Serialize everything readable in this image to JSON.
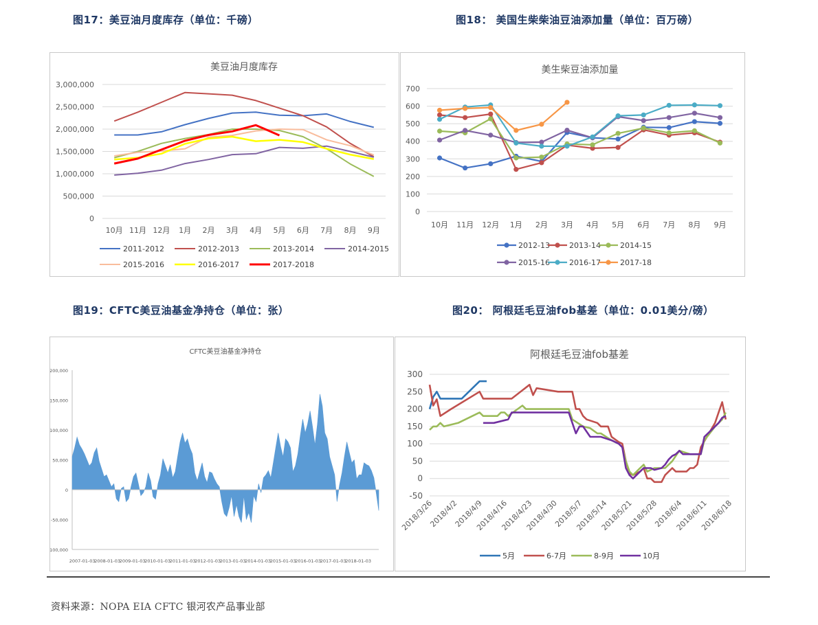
{
  "headings": {
    "fig17": "图17：美豆油月度库存（单位：千磅）",
    "fig18": "图18：  美国生柴柴油豆油添加量（单位：百万磅）",
    "fig19": "图19：CFTC美豆油基金净持仓（单位：张）",
    "fig20": "图20：  阿根廷毛豆油fob基差（单位：0.01美分/磅）"
  },
  "source": "资料来源：NOPA EIA CFTC  银河农产品事业部",
  "chart_data": [
    {
      "type": "line",
      "title": "美豆油月度库存",
      "categories": [
        "10月",
        "11月",
        "12月",
        "1月",
        "2月",
        "3月",
        "4月",
        "5月",
        "6月",
        "7月",
        "8月",
        "9月"
      ],
      "ylim": [
        0,
        3000000
      ],
      "yticks": [
        0,
        500000,
        1000000,
        1500000,
        2000000,
        2500000,
        3000000
      ],
      "ytick_labels": [
        "0",
        "500,000",
        "1,000,000",
        "1,500,000",
        "2,000,000",
        "2,500,000",
        "3,000,000"
      ],
      "grid": true,
      "legend_position": "bottom",
      "series": [
        {
          "name": "2011-2012",
          "color": "#4472c4",
          "width": 2,
          "values": [
            1870000,
            1870000,
            1940000,
            2100000,
            2240000,
            2360000,
            2380000,
            2310000,
            2300000,
            2340000,
            2170000,
            2040000
          ]
        },
        {
          "name": "2012-2013",
          "color": "#c0504d",
          "width": 2,
          "values": [
            2180000,
            2380000,
            2600000,
            2820000,
            2790000,
            2760000,
            2640000,
            2470000,
            2300000,
            2050000,
            1680000,
            1380000
          ]
        },
        {
          "name": "2013-2014",
          "color": "#9bbb59",
          "width": 2,
          "values": [
            1360000,
            1500000,
            1680000,
            1790000,
            1880000,
            2000000,
            2000000,
            1970000,
            1830000,
            1560000,
            1220000,
            940000
          ]
        },
        {
          "name": "2014-2015",
          "color": "#8064a2",
          "width": 2,
          "values": [
            970000,
            1010000,
            1080000,
            1230000,
            1320000,
            1430000,
            1450000,
            1590000,
            1570000,
            1620000,
            1500000,
            1370000
          ]
        },
        {
          "name": "2015-2016",
          "color": "#f9bc9c",
          "width": 2,
          "values": [
            1400000,
            1480000,
            1510000,
            1560000,
            1820000,
            1860000,
            1960000,
            2000000,
            1990000,
            1760000,
            1630000,
            1420000
          ]
        },
        {
          "name": "2016-2017",
          "color": "#ffff00",
          "width": 2.5,
          "values": [
            1320000,
            1360000,
            1450000,
            1670000,
            1790000,
            1830000,
            1730000,
            1760000,
            1710000,
            1560000,
            1430000,
            1330000
          ]
        },
        {
          "name": "2017-2018",
          "color": "#ff0000",
          "width": 3,
          "values": [
            1230000,
            1340000,
            1540000,
            1740000,
            1870000,
            1950000,
            2090000,
            1860000,
            null,
            null,
            null,
            null
          ]
        }
      ]
    },
    {
      "type": "line",
      "title": "美生柴豆油添加量",
      "categories": [
        "10月",
        "11月",
        "12月",
        "1月",
        "2月",
        "3月",
        "4月",
        "5月",
        "6月",
        "7月",
        "8月",
        "9月"
      ],
      "ylim": [
        0,
        700
      ],
      "yticks": [
        0,
        100,
        200,
        300,
        400,
        500,
        600,
        700
      ],
      "grid": true,
      "legend_position": "bottom",
      "series": [
        {
          "name": "2012-13",
          "color": "#4472c4",
          "values": [
            305,
            248,
            272,
            315,
            285,
            450,
            420,
            413,
            480,
            478,
            512,
            502
          ]
        },
        {
          "name": "2013-14",
          "color": "#c0504d",
          "values": [
            550,
            535,
            555,
            240,
            278,
            378,
            360,
            365,
            465,
            435,
            448,
            395
          ]
        },
        {
          "name": "2014-15",
          "color": "#9bbb59",
          "values": [
            458,
            448,
            528,
            305,
            310,
            385,
            380,
            445,
            475,
            448,
            460,
            390
          ]
        },
        {
          "name": "2015-16",
          "color": "#8064a2",
          "values": [
            407,
            462,
            435,
            393,
            395,
            463,
            420,
            540,
            518,
            535,
            560,
            535
          ]
        },
        {
          "name": "2016-17",
          "color": "#4bacc6",
          "values": [
            525,
            595,
            607,
            390,
            372,
            372,
            425,
            545,
            550,
            605,
            607,
            603
          ]
        },
        {
          "name": "2017-18",
          "color": "#f79646",
          "values": [
            577,
            587,
            592,
            462,
            497,
            622,
            null,
            null,
            null,
            null,
            null,
            null
          ]
        }
      ]
    },
    {
      "type": "area",
      "title": "CFTC美豆油基金净持仓",
      "x_tick_labels": [
        "2007-01-03",
        "2008-01-03",
        "2009-01-03",
        "2010-01-03",
        "2011-01-03",
        "2012-01-03",
        "2013-01-03",
        "2014-01-03",
        "2015-01-03",
        "2016-01-03",
        "2017-01-03",
        "2018-01-03"
      ],
      "ylim": [
        -100000,
        200000
      ],
      "yticks": [
        -100000,
        -50000,
        0,
        50000,
        100000,
        150000,
        200000
      ],
      "ytick_labels": [
        "-100,000",
        "-50,000",
        "0",
        "50,000",
        "100,000",
        "150,000",
        "200,000"
      ],
      "color": "#5b9bd5",
      "series": [
        {
          "name": "",
          "values": [
            55000,
            70000,
            88000,
            75000,
            68000,
            60000,
            50000,
            40000,
            45000,
            62000,
            70000,
            48000,
            35000,
            22000,
            25000,
            15000,
            5000,
            10000,
            -15000,
            -20000,
            2000,
            5000,
            -20000,
            -15000,
            5000,
            22000,
            28000,
            10000,
            -10000,
            -5000,
            5000,
            28000,
            15000,
            -12000,
            -16000,
            10000,
            25000,
            52000,
            40000,
            28000,
            42000,
            20000,
            30000,
            55000,
            80000,
            95000,
            78000,
            85000,
            70000,
            60000,
            28000,
            15000,
            30000,
            45000,
            22000,
            12000,
            30000,
            28000,
            18000,
            10000,
            5000,
            -20000,
            -40000,
            -45000,
            -30000,
            -10000,
            -45000,
            -25000,
            -45000,
            -55000,
            -10000,
            -50000,
            -38000,
            -55000,
            -10000,
            -20000,
            10000,
            -5000,
            20000,
            25000,
            32000,
            20000,
            45000,
            70000,
            95000,
            72000,
            55000,
            85000,
            80000,
            70000,
            30000,
            40000,
            60000,
            90000,
            118000,
            95000,
            110000,
            132000,
            105000,
            75000,
            110000,
            160000,
            140000,
            95000,
            85000,
            55000,
            40000,
            25000,
            -20000,
            8000,
            28000,
            55000,
            80000,
            62000,
            45000,
            50000,
            18000,
            25000,
            25000,
            45000,
            42000,
            40000,
            32000,
            20000,
            -6000,
            -35000
          ]
        }
      ]
    },
    {
      "type": "line",
      "title": "阿根廷毛豆油fob基差",
      "x_tick_labels": [
        "2018/3/26",
        "2018/4/2",
        "2018/4/9",
        "2018/4/16",
        "2018/4/23",
        "2018/4/30",
        "2018/5/7",
        "2018/5/14",
        "2018/5/21",
        "2018/5/28",
        "2018/6/4",
        "2018/6/11",
        "2018/6/18"
      ],
      "ylim": [
        -50,
        300
      ],
      "yticks": [
        -50,
        0,
        50,
        100,
        150,
        200,
        250,
        300
      ],
      "grid": true,
      "legend_position": "bottom",
      "series": [
        {
          "name": "5月",
          "color": "#2e75b6",
          "points": [
            [
              0,
              200
            ],
            [
              1,
              235
            ],
            [
              2,
              250
            ],
            [
              3,
              230
            ],
            [
              5,
              230
            ],
            [
              9,
              230
            ],
            [
              14,
              280
            ],
            [
              16,
              280
            ]
          ]
        },
        {
          "name": "6-7月",
          "color": "#c0504d",
          "points": [
            [
              0,
              270
            ],
            [
              1,
              210
            ],
            [
              2,
              228
            ],
            [
              3,
              180
            ],
            [
              6,
              200
            ],
            [
              14,
              250
            ],
            [
              15,
              230
            ],
            [
              23,
              230
            ],
            [
              28,
              270
            ],
            [
              29,
              240
            ],
            [
              30,
              260
            ],
            [
              36,
              250
            ],
            [
              40,
              250
            ],
            [
              41,
              200
            ],
            [
              42,
              200
            ],
            [
              43,
              180
            ],
            [
              44,
              170
            ],
            [
              47,
              160
            ],
            [
              48,
              150
            ],
            [
              50,
              150
            ],
            [
              51,
              120
            ],
            [
              53,
              105
            ],
            [
              54,
              100
            ],
            [
              55,
              50
            ],
            [
              56,
              15
            ],
            [
              57,
              10
            ],
            [
              59,
              20
            ],
            [
              60,
              30
            ],
            [
              61,
              0
            ],
            [
              62,
              0
            ],
            [
              63,
              -10
            ],
            [
              65,
              -10
            ],
            [
              66,
              10
            ],
            [
              68,
              30
            ],
            [
              69,
              20
            ],
            [
              72,
              20
            ],
            [
              73,
              30
            ],
            [
              74,
              30
            ],
            [
              75,
              40
            ],
            [
              76,
              90
            ],
            [
              80,
              160
            ],
            [
              81,
              190
            ],
            [
              82,
              220
            ],
            [
              83,
              170
            ]
          ]
        },
        {
          "name": "8-9月",
          "color": "#9bbb59",
          "points": [
            [
              0,
              140
            ],
            [
              1,
              150
            ],
            [
              2,
              150
            ],
            [
              3,
              160
            ],
            [
              4,
              150
            ],
            [
              8,
              160
            ],
            [
              14,
              190
            ],
            [
              15,
              180
            ],
            [
              19,
              180
            ],
            [
              20,
              190
            ],
            [
              21,
              190
            ],
            [
              22,
              180
            ],
            [
              26,
              210
            ],
            [
              27,
              200
            ],
            [
              39,
              200
            ],
            [
              40,
              170
            ],
            [
              43,
              150
            ],
            [
              45,
              145
            ],
            [
              47,
              130
            ],
            [
              48,
              130
            ],
            [
              51,
              110
            ],
            [
              53,
              100
            ],
            [
              54,
              90
            ],
            [
              55,
              50
            ],
            [
              56,
              20
            ],
            [
              57,
              10
            ],
            [
              59,
              30
            ],
            [
              60,
              40
            ],
            [
              61,
              20
            ],
            [
              62,
              25
            ],
            [
              63,
              30
            ],
            [
              66,
              30
            ],
            [
              68,
              50
            ],
            [
              69,
              65
            ],
            [
              70,
              80
            ],
            [
              73,
              70
            ],
            [
              76,
              70
            ],
            [
              77,
              110
            ],
            [
              80,
              150
            ],
            [
              81,
              160
            ],
            [
              82,
              170
            ],
            [
              83,
              190
            ]
          ]
        },
        {
          "name": "10月",
          "color": "#7030a0",
          "points": [
            [
              15,
              160
            ],
            [
              18,
              160
            ],
            [
              22,
              170
            ],
            [
              23,
              190
            ],
            [
              39,
              190
            ],
            [
              40,
              160
            ],
            [
              41,
              130
            ],
            [
              42,
              150
            ],
            [
              43,
              150
            ],
            [
              45,
              120
            ],
            [
              48,
              120
            ],
            [
              51,
              110
            ],
            [
              53,
              100
            ],
            [
              54,
              90
            ],
            [
              55,
              30
            ],
            [
              56,
              10
            ],
            [
              57,
              0
            ],
            [
              59,
              20
            ],
            [
              60,
              30
            ],
            [
              62,
              30
            ],
            [
              63,
              25
            ],
            [
              65,
              30
            ],
            [
              66,
              40
            ],
            [
              67,
              55
            ],
            [
              68,
              65
            ],
            [
              69,
              70
            ],
            [
              70,
              80
            ],
            [
              71,
              70
            ],
            [
              76,
              70
            ],
            [
              77,
              120
            ],
            [
              81,
              160
            ],
            [
              82,
              175
            ],
            [
              83,
              180
            ]
          ]
        }
      ]
    }
  ]
}
